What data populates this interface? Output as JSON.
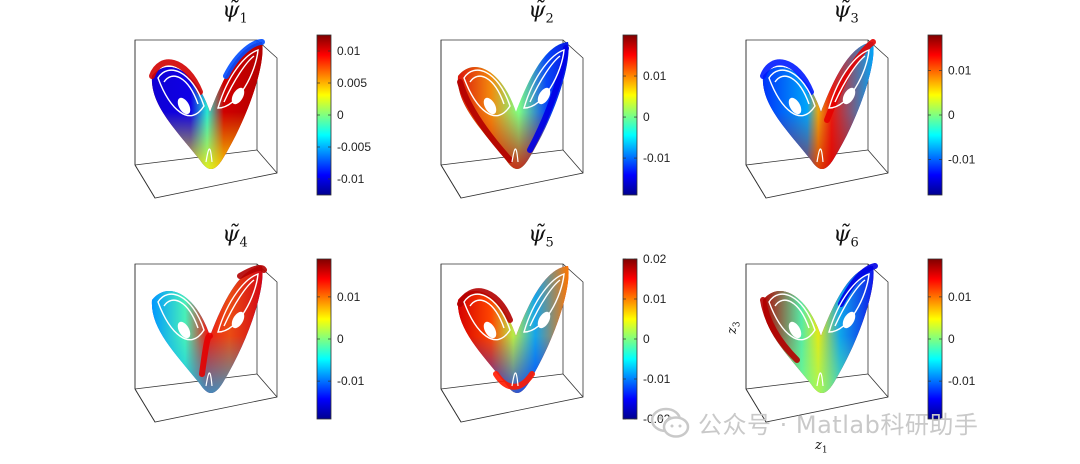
{
  "chart_data": [
    {
      "type": "heatmap",
      "title_base": "ψ̃",
      "title_sub": "1",
      "colorbar_range": [
        -0.0125,
        0.0125
      ],
      "colorbar_ticks": [
        -0.01,
        -0.005,
        0,
        0.005,
        0.01
      ],
      "colorbar_tick_labels": [
        "-0.01",
        "-0.005",
        "0",
        "0.005",
        "0.01"
      ],
      "colormap": "jet"
    },
    {
      "type": "heatmap",
      "title_base": "ψ̃",
      "title_sub": "2",
      "colorbar_range": [
        -0.019,
        0.02
      ],
      "colorbar_ticks": [
        -0.01,
        0,
        0.01
      ],
      "colorbar_tick_labels": [
        "-0.01",
        "0",
        "0.01"
      ],
      "colormap": "jet"
    },
    {
      "type": "heatmap",
      "title_base": "ψ̃",
      "title_sub": "3",
      "colorbar_range": [
        -0.018,
        0.018
      ],
      "colorbar_ticks": [
        -0.01,
        0,
        0.01
      ],
      "colorbar_tick_labels": [
        "-0.01",
        "0",
        "0.01"
      ],
      "colormap": "jet"
    },
    {
      "type": "heatmap",
      "title_base": "ψ̃",
      "title_sub": "4",
      "colorbar_range": [
        -0.019,
        0.019
      ],
      "colorbar_ticks": [
        -0.01,
        0,
        0.01
      ],
      "colorbar_tick_labels": [
        "-0.01",
        "0",
        "0.01"
      ],
      "colormap": "jet"
    },
    {
      "type": "heatmap",
      "title_base": "ψ̃",
      "title_sub": "5",
      "colorbar_range": [
        -0.02,
        0.02
      ],
      "colorbar_ticks": [
        -0.02,
        -0.01,
        0,
        0.01,
        0.02
      ],
      "colorbar_tick_labels": [
        "-0.02",
        "-0.01",
        "0",
        "0.01",
        "0.02"
      ],
      "colormap": "jet"
    },
    {
      "type": "heatmap",
      "title_base": "ψ̃",
      "title_sub": "6",
      "colorbar_range": [
        -0.019,
        0.019
      ],
      "colorbar_ticks": [
        -0.01,
        0,
        0.01
      ],
      "colorbar_tick_labels": [
        "-0.01",
        "0",
        "0.01"
      ],
      "colormap": "jet",
      "ylabel_base": "z",
      "ylabel_sub": "3",
      "xlabel_base": "z",
      "xlabel_sub": "1"
    }
  ],
  "watermark": {
    "text": "公众号 · Matlab科研助手",
    "icon": "wechat-icon"
  }
}
